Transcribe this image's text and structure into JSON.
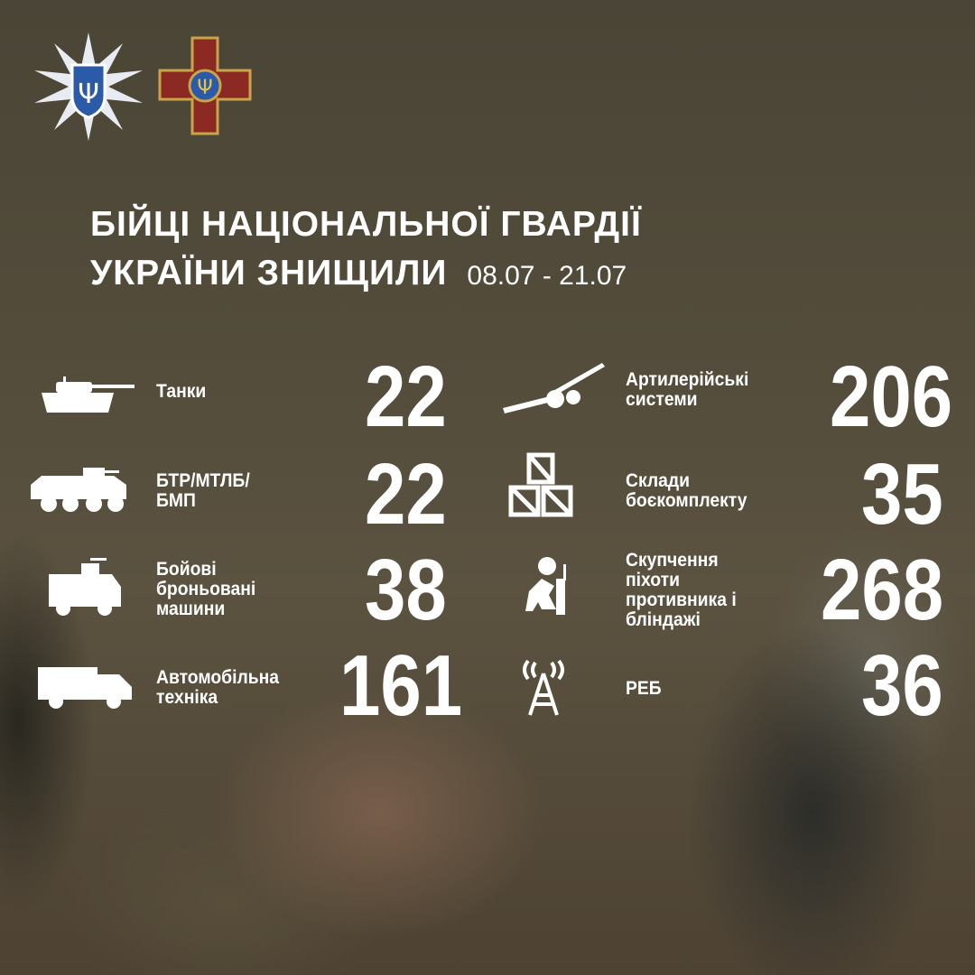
{
  "title": {
    "line1": "БІЙЦІ НАЦІОНАЛЬНОЇ ГВАРДІЇ",
    "line2": "УКРАЇНИ ЗНИЩИЛИ",
    "date": "08.07 - 21.07"
  },
  "colors": {
    "cross": "#8b2a22",
    "cross_border": "#c9a449",
    "star": "#e8ecf2",
    "shield": "#2a5aa8"
  },
  "stats": [
    {
      "icon": "tank-icon",
      "label": "Танки",
      "value": "22"
    },
    {
      "icon": "apc-icon",
      "label": "БТР/МТЛБ/ БМП",
      "value": "22"
    },
    {
      "icon": "armored-vehicle-icon",
      "label": "Бойові броньовані машини",
      "value": "38"
    },
    {
      "icon": "truck-icon",
      "label": "Автомобільна техніка",
      "value": "161"
    },
    {
      "icon": "artillery-icon",
      "label": "Артилерійські системи",
      "value": "206"
    },
    {
      "icon": "ammo-crates-icon",
      "label": "Склади боєкомплекту",
      "value": "35"
    },
    {
      "icon": "infantry-icon",
      "label": "Скупчення піхоти противника і бліндажі",
      "value": "268"
    },
    {
      "icon": "ew-tower-icon",
      "label": "РЕБ",
      "value": "36"
    }
  ]
}
